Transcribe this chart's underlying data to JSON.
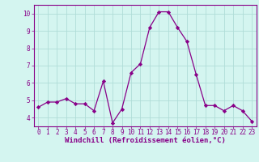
{
  "x": [
    0,
    1,
    2,
    3,
    4,
    5,
    6,
    7,
    8,
    9,
    10,
    11,
    12,
    13,
    14,
    15,
    16,
    17,
    18,
    19,
    20,
    21,
    22,
    23
  ],
  "y": [
    4.6,
    4.9,
    4.9,
    5.1,
    4.8,
    4.8,
    4.4,
    6.1,
    3.7,
    4.5,
    6.6,
    7.1,
    9.2,
    10.1,
    10.1,
    9.2,
    8.4,
    6.5,
    4.7,
    4.7,
    4.4,
    4.7,
    4.4,
    3.8
  ],
  "line_color": "#880088",
  "marker": "D",
  "marker_size": 2.2,
  "bg_color": "#d4f5f0",
  "grid_color": "#b0ddd8",
  "xlabel": "Windchill (Refroidissement éolien,°C)",
  "xlabel_color": "#880088",
  "tick_color": "#880088",
  "ylim": [
    3.5,
    10.5
  ],
  "xlim": [
    -0.5,
    23.5
  ],
  "yticks": [
    4,
    5,
    6,
    7,
    8,
    9,
    10
  ],
  "xticks": [
    0,
    1,
    2,
    3,
    4,
    5,
    6,
    7,
    8,
    9,
    10,
    11,
    12,
    13,
    14,
    15,
    16,
    17,
    18,
    19,
    20,
    21,
    22,
    23
  ],
  "spine_color": "#880088",
  "tick_fontsize": 5.5,
  "xlabel_fontsize": 6.5,
  "linewidth": 0.9
}
